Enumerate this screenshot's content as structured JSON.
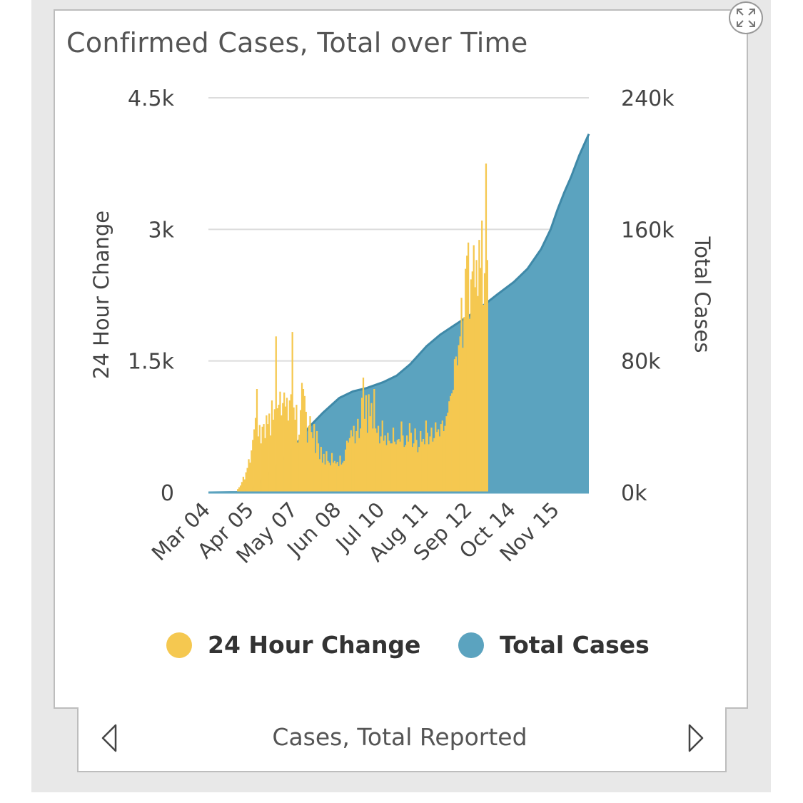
{
  "card": {
    "title": "Confirmed Cases, Total over Time",
    "footer_label": "Cases, Total Reported",
    "expand_icon": "expand-arrows-icon",
    "prev_icon": "triangle-left-icon",
    "next_icon": "triangle-right-icon"
  },
  "legend": [
    {
      "label": "24 Hour Change",
      "color": "#f5c850"
    },
    {
      "label": "Total Cases",
      "color": "#5ba3bf"
    }
  ],
  "colors": {
    "bars": "#f5c850",
    "area": "#5ba3bf",
    "area_line": "#3f89a8",
    "grid": "#dcdcdc",
    "text": "#444444"
  },
  "chart_data": {
    "type": "bar+area",
    "x_tick_labels": [
      "Mar 04",
      "Apr 05",
      "May 07",
      "Jun 08",
      "Jul 10",
      "Aug 11",
      "Sep 12",
      "Oct 14",
      "Nov 15"
    ],
    "x_range": [
      "Mar 04",
      "Dec 08"
    ],
    "grid": true,
    "legend_position": "bottom",
    "y_left": {
      "label": "24 Hour Change",
      "ticks": [
        "0",
        "1.5k",
        "3k",
        "4.5k"
      ],
      "range": [
        0,
        4500
      ]
    },
    "y_right": {
      "label": "Total Cases",
      "ticks": [
        "0k",
        "80k",
        "160k",
        "240k"
      ],
      "range": [
        0,
        240000
      ]
    },
    "series": [
      {
        "name": "24 Hour Change",
        "axis": "left",
        "kind": "bar",
        "day0": "Mar 04",
        "values": [
          0,
          0,
          0,
          0,
          0,
          0,
          0,
          0,
          0,
          0,
          0,
          0,
          0,
          0,
          0,
          0,
          0,
          0,
          0,
          0,
          0,
          40,
          60,
          80,
          120,
          180,
          150,
          230,
          280,
          380,
          340,
          480,
          600,
          720,
          850,
          1180,
          640,
          770,
          560,
          750,
          780,
          620,
          880,
          780,
          900,
          650,
          1050,
          830,
          950,
          1780,
          960,
          1000,
          1150,
          880,
          1020,
          1140,
          980,
          1080,
          820,
          1050,
          1120,
          1830,
          970,
          830,
          1000,
          570,
          660,
          940,
          1250,
          1180,
          1100,
          920,
          570,
          760,
          870,
          690,
          620,
          780,
          450,
          700,
          560,
          380,
          520,
          340,
          440,
          320,
          470,
          360,
          340,
          310,
          450,
          340,
          360,
          330,
          350,
          300,
          420,
          320,
          340,
          360,
          490,
          590,
          570,
          620,
          710,
          640,
          760,
          560,
          700,
          840,
          620,
          730,
          1080,
          1310,
          840,
          1110,
          680,
          1120,
          870,
          1020,
          730,
          1180,
          730,
          680,
          760,
          560,
          640,
          820,
          590,
          650,
          540,
          680,
          590,
          560,
          560,
          740,
          580,
          550,
          600,
          610,
          580,
          810,
          650,
          520,
          540,
          650,
          580,
          790,
          680,
          520,
          560,
          730,
          600,
          460,
          520,
          700,
          580,
          610,
          550,
          820,
          680,
          550,
          640,
          740,
          580,
          620,
          800,
          690,
          720,
          640,
          780,
          820,
          700,
          760,
          870,
          910,
          1040,
          1100,
          1130,
          1170,
          1520,
          1550,
          1450,
          1680,
          1780,
          2220,
          1650,
          2000,
          2550,
          2700,
          2850,
          1980,
          2430,
          2520,
          2820,
          2340,
          2650,
          2240,
          2880,
          2560,
          3100,
          2140,
          2500,
          3750,
          2650
        ]
      },
      {
        "name": "Total Cases",
        "axis": "right",
        "kind": "area",
        "points": [
          [
            "Mar 04",
            0
          ],
          [
            "Mar 25",
            200
          ],
          [
            "Apr 05",
            2500
          ],
          [
            "Apr 15",
            10000
          ],
          [
            "Apr 25",
            18000
          ],
          [
            "May 07",
            29000
          ],
          [
            "May 17",
            40000
          ],
          [
            "May 27",
            48500
          ],
          [
            "Jun 02",
            53000
          ],
          [
            "Jun 08",
            57500
          ],
          [
            "Jun 18",
            61500
          ],
          [
            "Jun 28",
            63500
          ],
          [
            "Jul 10",
            67000
          ],
          [
            "Jul 20",
            71000
          ],
          [
            "Jul 30",
            78000
          ],
          [
            "Aug 11",
            89000
          ],
          [
            "Aug 21",
            96000
          ],
          [
            "Aug 31",
            101500
          ],
          [
            "Sep 12",
            108000
          ],
          [
            "Sep 22",
            114000
          ],
          [
            "Oct 02",
            120500
          ],
          [
            "Oct 14",
            128000
          ],
          [
            "Oct 24",
            136000
          ],
          [
            "Nov 03",
            148000
          ],
          [
            "Nov 10",
            160000
          ],
          [
            "Nov 15",
            172000
          ],
          [
            "Nov 20",
            182500
          ],
          [
            "Nov 25",
            192000
          ],
          [
            "Dec 01",
            205000
          ],
          [
            "Dec 05",
            212500
          ],
          [
            "Dec 08",
            218000
          ]
        ]
      }
    ]
  }
}
